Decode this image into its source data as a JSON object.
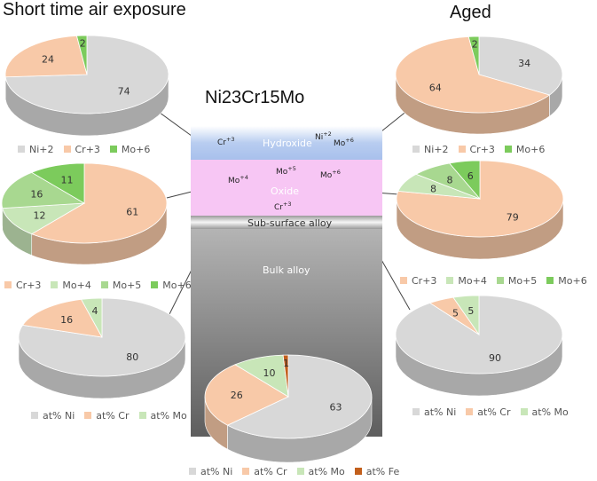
{
  "titles": {
    "left": "Short time air exposure",
    "right": "Aged",
    "center": "Ni23Cr15Mo"
  },
  "colors": {
    "ni": "#d8d8d8",
    "cr": "#f8c9a8",
    "mo4": "#c8e6b8",
    "mo5": "#a8d890",
    "mo6": "#7ccb5c",
    "fe": "#c25f1c",
    "mo": "#c8e6b8",
    "hydroxide": "#b8cdf0",
    "oxide": "#f7c6f4",
    "bulk_top": "#b4b4b4",
    "bulk_bottom": "#5e5e5e"
  },
  "layers": {
    "hydroxide": "Hydroxide",
    "oxide": "Oxide",
    "subsurface": "Sub-surface alloy",
    "bulk": "Bulk alloy"
  },
  "ions": {
    "hydroxide_cr": {
      "base": "Cr",
      "sup": "+3"
    },
    "hydroxide_ni": {
      "base": "Ni",
      "sup": "+2"
    },
    "hydroxide_mo": {
      "base": "Mo",
      "sup": "+6"
    },
    "oxide_mo5": {
      "base": "Mo",
      "sup": "+5"
    },
    "oxide_mo4": {
      "base": "Mo",
      "sup": "+4"
    },
    "oxide_mo6": {
      "base": "Mo",
      "sup": "+6"
    },
    "oxide_cr": {
      "base": "Cr",
      "sup": "+3"
    }
  },
  "chart_data": [
    {
      "id": "short_hydroxide",
      "type": "pie",
      "slices": [
        {
          "label": "Ni+2",
          "value": 74,
          "color": "#d8d8d8"
        },
        {
          "label": "Cr+3",
          "value": 24,
          "color": "#f8c9a8"
        },
        {
          "label": "Mo+6",
          "value": 2,
          "color": "#7ccb5c"
        }
      ],
      "legend": [
        "Ni+2",
        "Cr+3",
        "Mo+6"
      ]
    },
    {
      "id": "short_oxide",
      "type": "pie",
      "slices": [
        {
          "label": "Cr+3",
          "value": 61,
          "color": "#f8c9a8"
        },
        {
          "label": "Mo+4",
          "value": 12,
          "color": "#c8e6b8"
        },
        {
          "label": "Mo+5",
          "value": 16,
          "color": "#a8d890"
        },
        {
          "label": "Mo+6",
          "value": 11,
          "color": "#7ccb5c"
        }
      ],
      "legend": [
        "Cr+3",
        "Mo+4",
        "Mo+5",
        "Mo+6"
      ]
    },
    {
      "id": "short_subsurface",
      "type": "pie",
      "slices": [
        {
          "label": "at% Ni",
          "value": 80,
          "color": "#d8d8d8"
        },
        {
          "label": "at% Cr",
          "value": 16,
          "color": "#f8c9a8"
        },
        {
          "label": "at% Mo",
          "value": 4,
          "color": "#c8e6b8"
        }
      ],
      "legend": [
        "at% Ni",
        "at% Cr",
        "at% Mo"
      ]
    },
    {
      "id": "bulk",
      "type": "pie",
      "slices": [
        {
          "label": "at% Ni",
          "value": 63,
          "color": "#d8d8d8"
        },
        {
          "label": "at% Cr",
          "value": 26,
          "color": "#f8c9a8"
        },
        {
          "label": "at% Mo",
          "value": 10,
          "color": "#c8e6b8"
        },
        {
          "label": "at% Fe",
          "value": 1,
          "color": "#c25f1c"
        }
      ],
      "legend": [
        "at% Ni",
        "at% Cr",
        "at% Mo",
        "at% Fe"
      ]
    },
    {
      "id": "aged_hydroxide",
      "type": "pie",
      "slices": [
        {
          "label": "Ni+2",
          "value": 34,
          "color": "#d8d8d8"
        },
        {
          "label": "Cr+3",
          "value": 64,
          "color": "#f8c9a8"
        },
        {
          "label": "Mo+6",
          "value": 2,
          "color": "#7ccb5c"
        }
      ],
      "legend": [
        "Ni+2",
        "Cr+3",
        "Mo+6"
      ]
    },
    {
      "id": "aged_oxide",
      "type": "pie",
      "slices": [
        {
          "label": "Cr+3",
          "value": 79,
          "color": "#f8c9a8"
        },
        {
          "label": "Mo+4",
          "value": 8,
          "color": "#c8e6b8"
        },
        {
          "label": "Mo+5",
          "value": 8,
          "color": "#a8d890"
        },
        {
          "label": "Mo+6",
          "value": 6,
          "color": "#7ccb5c"
        }
      ],
      "legend": [
        "Cr+3",
        "Mo+4",
        "Mo+5",
        "Mo+6"
      ]
    },
    {
      "id": "aged_subsurface",
      "type": "pie",
      "slices": [
        {
          "label": "at% Ni",
          "value": 90,
          "color": "#d8d8d8"
        },
        {
          "label": "at% Cr",
          "value": 5,
          "color": "#f8c9a8"
        },
        {
          "label": "at% Mo",
          "value": 5,
          "color": "#c8e6b8"
        }
      ],
      "legend": [
        "at% Ni",
        "at% Cr",
        "at% Mo"
      ]
    }
  ]
}
